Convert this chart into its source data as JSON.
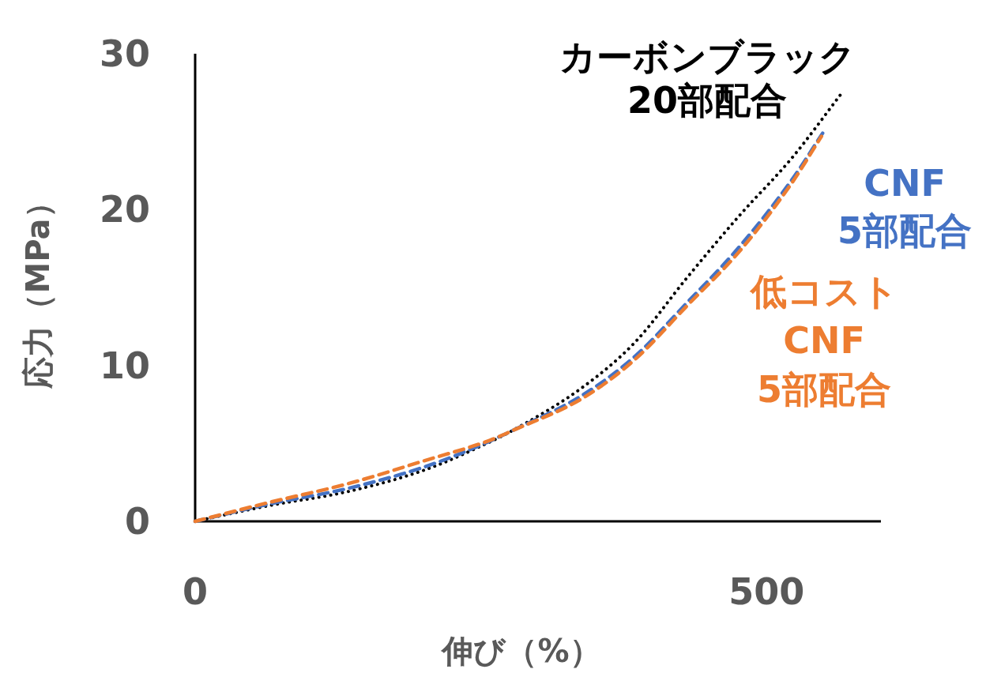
{
  "chart_data": {
    "type": "line",
    "xlabel": "伸び（%）",
    "ylabel": "応力（MPa）",
    "xlim": [
      0,
      600
    ],
    "ylim": [
      0,
      30
    ],
    "xticks": [
      0,
      500
    ],
    "yticks": [
      0,
      10,
      20,
      30
    ],
    "grid": false,
    "series": [
      {
        "name": "カーボンブラック\n20部配合",
        "color": "#000000",
        "line_style": "dotted",
        "x": [
          0,
          64,
          133,
          201,
          258,
          277,
          339,
          385,
          430,
          476,
          522,
          567
        ],
        "values": [
          0,
          1.0,
          1.9,
          3.3,
          5.1,
          5.8,
          8.6,
          11.5,
          15.6,
          19.6,
          23.3,
          27.6
        ]
      },
      {
        "name": "CNF\n5部配合",
        "color": "#4472c4",
        "line_style": "dashed",
        "x": [
          0,
          64,
          133,
          201,
          247,
          277,
          339,
          385,
          430,
          476,
          522,
          549
        ],
        "values": [
          0,
          1.1,
          2.1,
          3.5,
          4.8,
          5.8,
          8.1,
          10.6,
          14.0,
          17.6,
          21.9,
          24.9
        ]
      },
      {
        "name": "低コスト\nCNF\n5部配合",
        "color": "#ed7d31",
        "line_style": "dashed",
        "x": [
          0,
          64,
          133,
          201,
          258,
          277,
          339,
          385,
          430,
          476,
          522,
          548
        ],
        "values": [
          0,
          1.2,
          2.4,
          3.9,
          5.2,
          5.8,
          7.9,
          10.4,
          13.8,
          17.3,
          21.7,
          24.7
        ]
      }
    ]
  }
}
